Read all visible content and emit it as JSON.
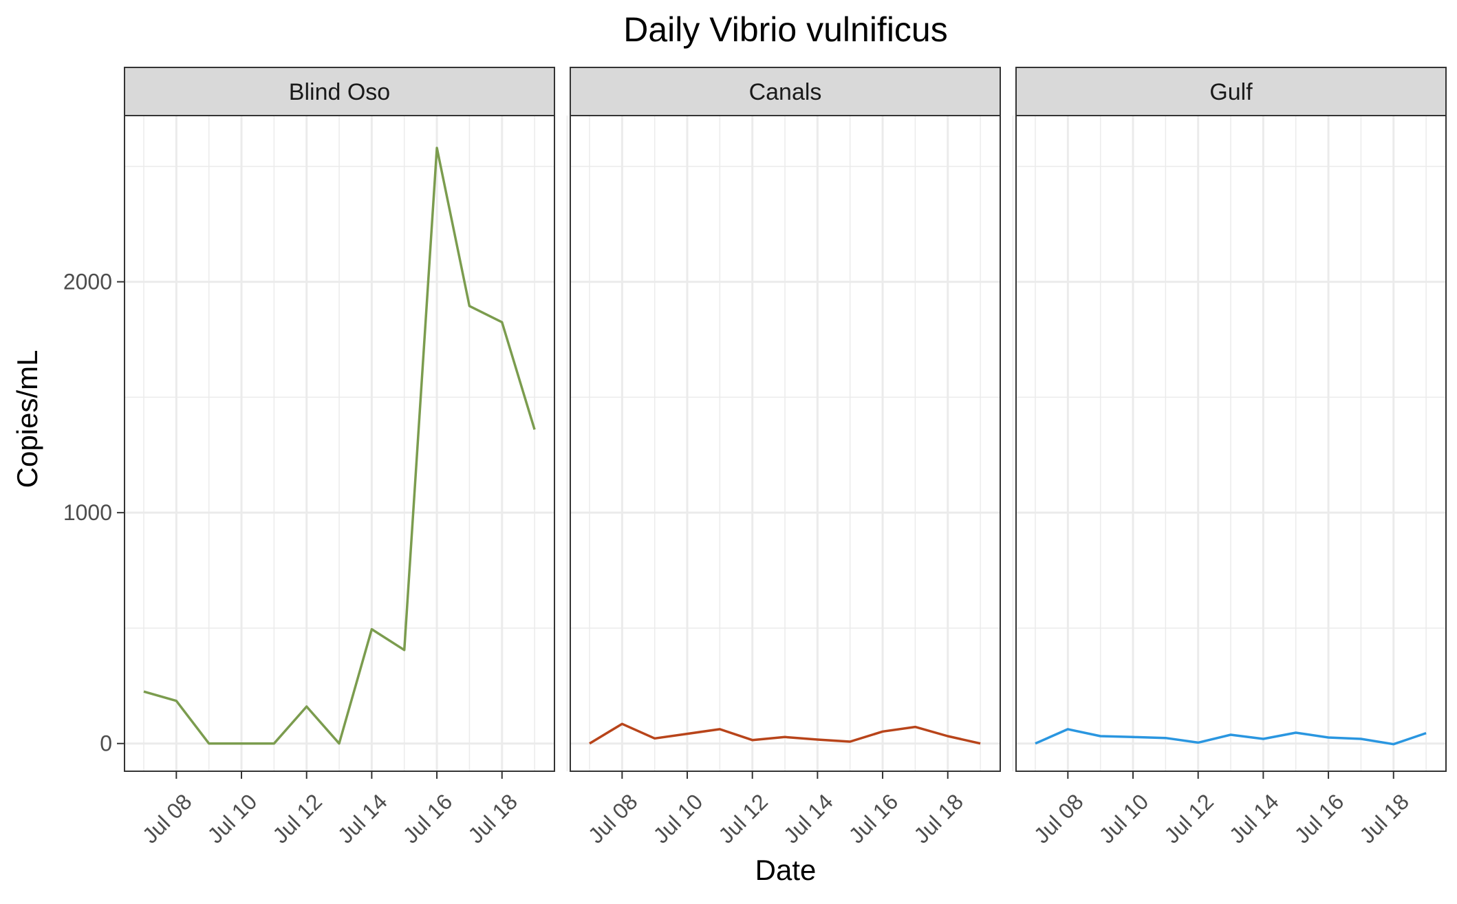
{
  "chart_data": {
    "type": "line",
    "title": "Daily Vibrio vulnificus",
    "xlabel": "Date",
    "ylabel": "Copies/mL",
    "x": [
      "Jul 07",
      "Jul 08",
      "Jul 09",
      "Jul 10",
      "Jul 11",
      "Jul 12",
      "Jul 13",
      "Jul 14",
      "Jul 15",
      "Jul 16",
      "Jul 17",
      "Jul 18",
      "Jul 19"
    ],
    "x_tick_labels": [
      "Jul 08",
      "Jul 10",
      "Jul 12",
      "Jul 14",
      "Jul 16",
      "Jul 18"
    ],
    "y_ticks": [
      0,
      1000,
      2000
    ],
    "ylim": [
      -120,
      2720
    ],
    "grid": true,
    "legend": "none",
    "panels": [
      {
        "name": "Blind Oso",
        "color": "#7b9c4e",
        "values": [
          225,
          185,
          0,
          0,
          0,
          160,
          0,
          495,
          405,
          2580,
          1895,
          1825,
          1360
        ]
      },
      {
        "name": "Canals",
        "color": "#b8441a",
        "values": [
          0,
          85,
          22,
          42,
          62,
          15,
          28,
          17,
          8,
          52,
          72,
          32,
          0
        ]
      },
      {
        "name": "Gulf",
        "color": "#2a96e0",
        "values": [
          0,
          62,
          32,
          28,
          24,
          4,
          38,
          20,
          47,
          26,
          20,
          -3,
          45
        ]
      }
    ]
  }
}
